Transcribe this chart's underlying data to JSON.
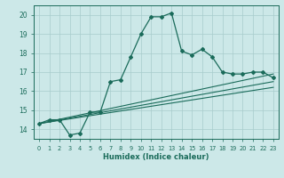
{
  "xlabel": "Humidex (Indice chaleur)",
  "ylabel": "",
  "bg_color": "#cce8e8",
  "grid_color": "#a8cccc",
  "line_color": "#1a6b5a",
  "xlim": [
    -0.5,
    23.5
  ],
  "ylim": [
    13.5,
    20.5
  ],
  "yticks": [
    14,
    15,
    16,
    17,
    18,
    19,
    20
  ],
  "xticks": [
    0,
    1,
    2,
    3,
    4,
    5,
    6,
    7,
    8,
    9,
    10,
    11,
    12,
    13,
    14,
    15,
    16,
    17,
    18,
    19,
    20,
    21,
    22,
    23
  ],
  "series1_x": [
    0,
    1,
    2,
    3,
    4,
    5,
    6,
    7,
    8,
    9,
    10,
    11,
    12,
    13,
    14,
    15,
    16,
    17,
    18,
    19,
    20,
    21,
    22,
    23
  ],
  "series1_y": [
    14.3,
    14.5,
    14.5,
    13.7,
    13.8,
    14.9,
    14.9,
    16.5,
    16.6,
    17.8,
    19.0,
    19.9,
    19.9,
    20.1,
    18.1,
    17.9,
    18.2,
    17.8,
    17.0,
    16.9,
    16.9,
    17.0,
    17.0,
    16.7
  ],
  "series2_x": [
    0,
    23
  ],
  "series2_y": [
    14.3,
    16.9
  ],
  "series3_x": [
    0,
    23
  ],
  "series3_y": [
    14.3,
    16.5
  ],
  "series4_x": [
    0,
    23
  ],
  "series4_y": [
    14.3,
    16.2
  ]
}
